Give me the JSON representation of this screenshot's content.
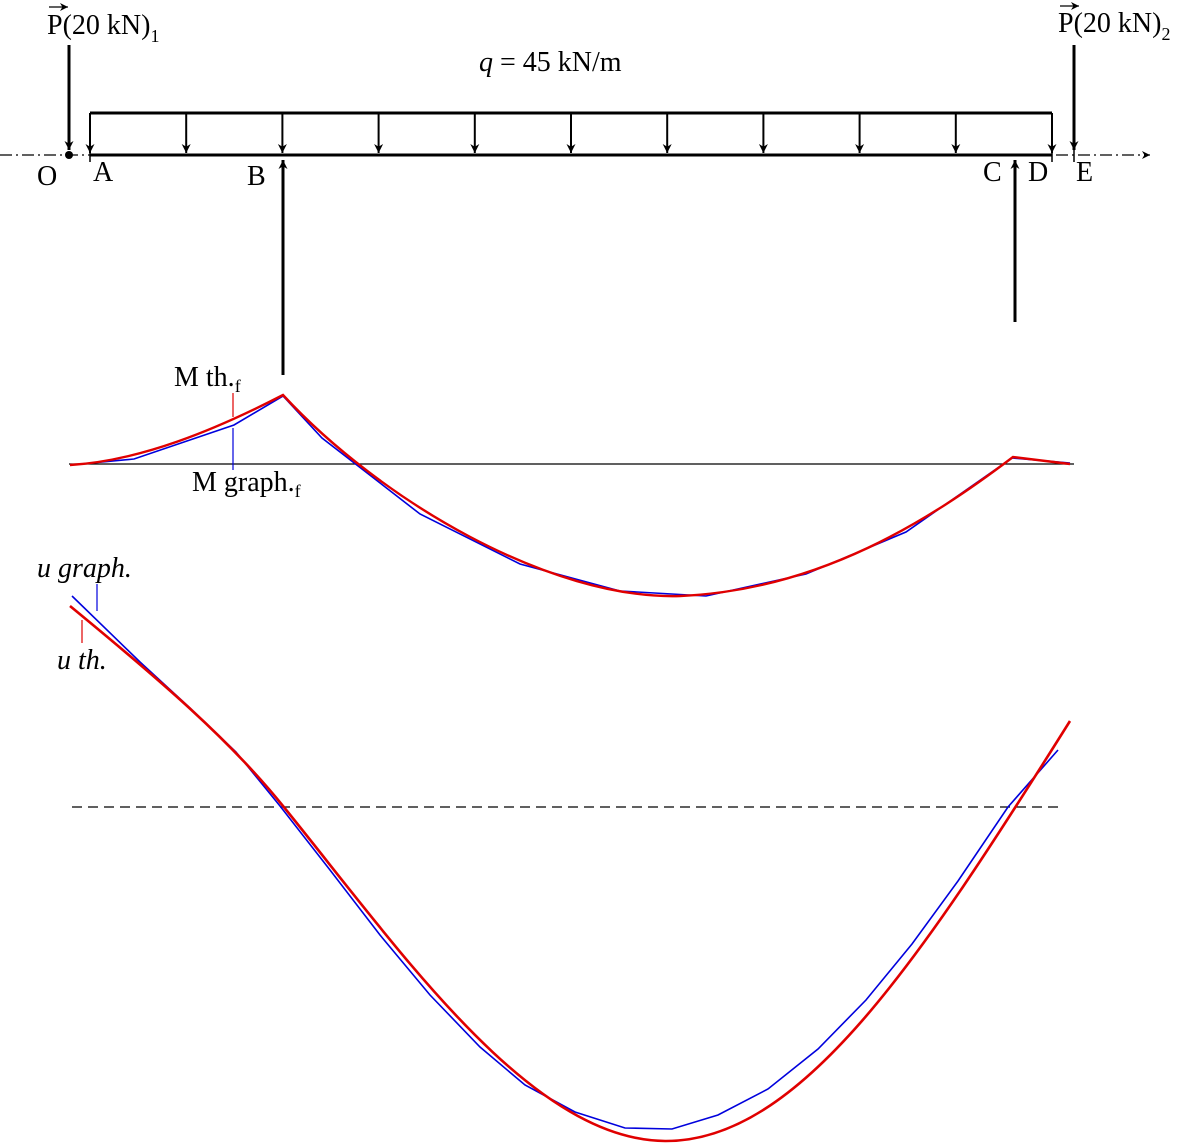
{
  "loads": {
    "p1": {
      "prefix": "P",
      "value": "(20 kN)",
      "index": "1"
    },
    "p2": {
      "prefix": "P",
      "value": "(20 kN)",
      "index": "2"
    },
    "distributed": {
      "symbol": "q",
      "rest": " = 45 kN/m"
    }
  },
  "points": {
    "o": "O",
    "a": "A",
    "b": "B",
    "c": "C",
    "d": "D",
    "e": "E"
  },
  "moment_labels": {
    "theory": {
      "main": "M th.",
      "sub": "f"
    },
    "graph": {
      "main": "M graph.",
      "sub": "f"
    }
  },
  "deflection_labels": {
    "graph": "u graph.",
    "theory": "u th."
  },
  "colors": {
    "theory": "#e00000",
    "graph": "#0000dd",
    "axis": "#000000"
  }
}
